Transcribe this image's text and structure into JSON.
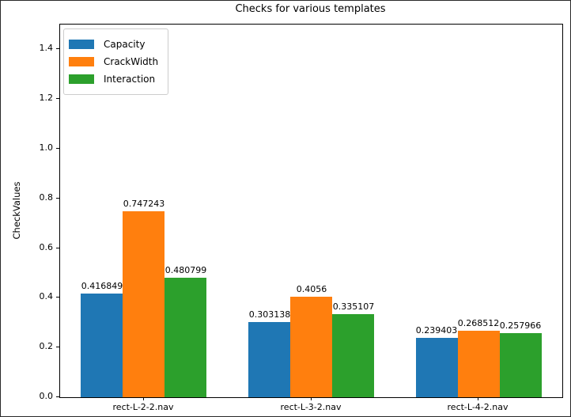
{
  "chart_data": {
    "type": "bar",
    "title": "Checks for various templates",
    "xlabel": "",
    "ylabel": "CheckValues",
    "categories": [
      "rect-L-2-2.nav",
      "rect-L-3-2.nav",
      "rect-L-4-2.nav"
    ],
    "series": [
      {
        "name": "Capacity",
        "color": "#1f77b4",
        "values": [
          0.416849,
          0.303138,
          0.239403
        ],
        "labels": [
          "0.416849",
          "0.303138",
          "0.239403"
        ]
      },
      {
        "name": "CrackWidth",
        "color": "#ff7f0e",
        "values": [
          0.747243,
          0.4056,
          0.268512
        ],
        "labels": [
          "0.747243",
          "0.4056",
          "0.268512"
        ]
      },
      {
        "name": "Interaction",
        "color": "#2ca02c",
        "values": [
          0.480799,
          0.335107,
          0.257966
        ],
        "labels": [
          "0.480799",
          "0.335107",
          "0.257966"
        ]
      }
    ],
    "ylim": [
      0,
      1.5
    ],
    "yticks": [
      "0.0",
      "0.2",
      "0.4",
      "0.6",
      "0.8",
      "1.0",
      "1.2",
      "1.4"
    ],
    "grid": false,
    "legend_position": "upper left",
    "bar_value_labels_shown": true,
    "axis_color": "#000000",
    "background_color": "#ffffff"
  }
}
